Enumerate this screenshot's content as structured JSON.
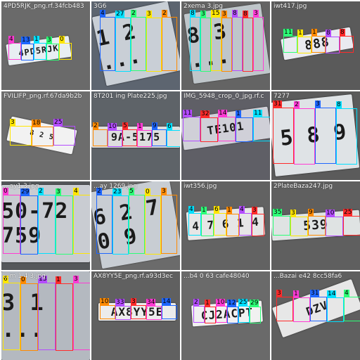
{
  "tiles": [
    {
      "caption": "4PD5RJK_png.rf.34fcb483"
    },
    {
      "caption": "3G6"
    },
    {
      "caption": "2xema   3.jpg"
    },
    {
      "caption": "iwt417.jpg"
    },
    {
      "caption": "FVILIFP_png.rf.67da9b2b"
    },
    {
      "caption": "8T201 ing Plate225.jpg"
    },
    {
      "caption": "IMG_5948_crop_0_jpg.rf.c"
    },
    {
      "caption": "7277"
    },
    {
      "caption": "...ay1 3.jpg"
    },
    {
      "caption": "...ay 1269.jpg"
    },
    {
      "caption": "iwt356.jpg"
    },
    {
      "caption": "2PlateBaza247.jpg"
    },
    {
      "caption": "...m 1 4 3.jpg"
    },
    {
      "caption": "AX8YY5E_png.rf.a93d3ec"
    },
    {
      "caption": "...b4 0 63 cafe48040"
    },
    {
      "caption": "...Bazai e42 8cc58fa6"
    }
  ],
  "plates": [
    "4PD5RJK",
    "1 2 ...",
    "8 3 ...",
    "888",
    "8 2 5",
    "9A-5175",
    "TE101",
    "5 8 9",
    "50-72 759",
    "6 2 7 0 9",
    "4 7 6 1 4",
    "539",
    "3 1 ...",
    "AX8YY5E",
    "CJ2ACPT",
    "DZV"
  ],
  "labels": [
    [
      "4",
      "13",
      "1",
      "3",
      "0"
    ],
    [
      "4",
      "27",
      "2",
      "3",
      "2"
    ],
    [
      "8",
      "3",
      "15",
      "3",
      "8",
      "8",
      "3"
    ],
    [
      "11",
      "1",
      "1",
      "8",
      "8"
    ],
    [
      "3",
      "18",
      "25"
    ],
    [
      "2",
      "10",
      "5",
      "1",
      "9",
      "6"
    ],
    [
      "11",
      "32",
      "14",
      "1",
      "11"
    ],
    [
      "31",
      "2",
      "3",
      "8"
    ],
    [
      "0",
      "29",
      "2",
      "3",
      "4"
    ],
    [
      "2",
      "23",
      "5",
      "0",
      "3"
    ],
    [
      "4",
      "1",
      "6",
      "1",
      "4",
      "3"
    ],
    [
      "35",
      "3",
      "9",
      "10",
      "25"
    ],
    [
      "6",
      "0",
      "13",
      "1",
      "3"
    ],
    [
      "10",
      "33",
      "3",
      "34",
      "14"
    ],
    [
      "2",
      "1",
      "10",
      "12",
      "25",
      "29"
    ],
    [
      "3",
      "1",
      "31",
      "14",
      "4"
    ]
  ]
}
